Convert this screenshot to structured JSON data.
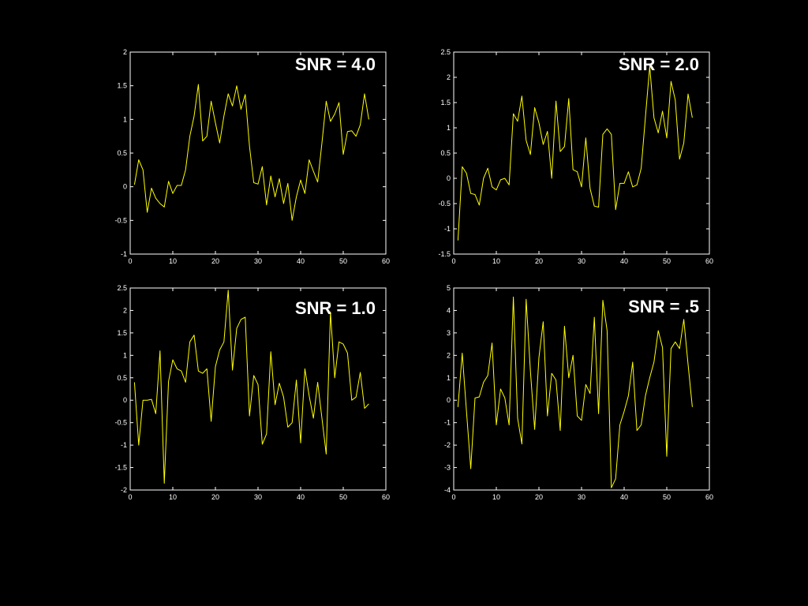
{
  "colors": {
    "background": "#000000",
    "axes": "#ffffff",
    "series": "#ffff00"
  },
  "chart_data": [
    {
      "type": "line",
      "title": "SNR = 4.0",
      "xlim": [
        0,
        60
      ],
      "ylim": [
        -1,
        2
      ],
      "xticks": [
        0,
        10,
        20,
        30,
        40,
        50,
        60
      ],
      "yticks": [
        -1,
        -0.5,
        0,
        0.5,
        1,
        1.5,
        2
      ],
      "grid": false,
      "series": [
        {
          "x": [
            1,
            2,
            3,
            4,
            5,
            6,
            7,
            8,
            9,
            10,
            11,
            12,
            13,
            14,
            15,
            16,
            17,
            18,
            19,
            20,
            21,
            22,
            23,
            24,
            25,
            26,
            27,
            28,
            29,
            30,
            31,
            32,
            33,
            34,
            35,
            36,
            37,
            38,
            39,
            40,
            41,
            42,
            43,
            44,
            45,
            46,
            47,
            48,
            49,
            50,
            51,
            52,
            53,
            54,
            55,
            56
          ],
          "values": [
            0.03,
            0.4,
            0.25,
            -0.38,
            -0.02,
            -0.17,
            -0.25,
            -0.3,
            0.08,
            -0.1,
            0.02,
            0.02,
            0.25,
            0.75,
            1.05,
            1.52,
            0.68,
            0.75,
            1.27,
            0.95,
            0.65,
            1.05,
            1.38,
            1.2,
            1.5,
            1.15,
            1.37,
            0.6,
            0.06,
            0.04,
            0.3,
            -0.27,
            0.16,
            -0.15,
            0.12,
            -0.25,
            0.05,
            -0.5,
            -0.15,
            0.1,
            -0.1,
            0.4,
            0.23,
            0.07,
            0.65,
            1.27,
            0.97,
            1.08,
            1.25,
            0.48,
            0.82,
            0.83,
            0.75,
            0.92,
            1.38,
            1.0
          ]
        }
      ]
    },
    {
      "type": "line",
      "title": "SNR = 2.0",
      "xlim": [
        0,
        60
      ],
      "ylim": [
        -1.5,
        2.5
      ],
      "xticks": [
        0,
        10,
        20,
        30,
        40,
        50,
        60
      ],
      "yticks": [
        -1.5,
        -1,
        -0.5,
        0,
        0.5,
        1,
        1.5,
        2,
        2.5
      ],
      "grid": false,
      "series": [
        {
          "x": [
            1,
            2,
            3,
            4,
            5,
            6,
            7,
            8,
            9,
            10,
            11,
            12,
            13,
            14,
            15,
            16,
            17,
            18,
            19,
            20,
            21,
            22,
            23,
            24,
            25,
            26,
            27,
            28,
            29,
            30,
            31,
            32,
            33,
            34,
            35,
            36,
            37,
            38,
            39,
            40,
            41,
            42,
            43,
            44,
            45,
            46,
            47,
            48,
            49,
            50,
            51,
            52,
            53,
            54,
            55,
            56
          ],
          "values": [
            -1.23,
            0.23,
            0.1,
            -0.3,
            -0.32,
            -0.53,
            0.0,
            0.2,
            -0.17,
            -0.23,
            -0.03,
            0.0,
            -0.13,
            1.28,
            1.13,
            1.63,
            0.75,
            0.47,
            1.4,
            1.1,
            0.67,
            0.93,
            0.0,
            1.53,
            0.53,
            0.63,
            1.58,
            0.17,
            0.13,
            -0.17,
            0.8,
            -0.2,
            -0.55,
            -0.57,
            0.87,
            0.98,
            0.87,
            -0.62,
            -0.1,
            -0.1,
            0.13,
            -0.17,
            -0.13,
            0.2,
            1.22,
            2.22,
            1.2,
            0.9,
            1.33,
            0.8,
            1.92,
            1.55,
            0.38,
            0.7,
            1.67,
            1.2
          ]
        }
      ]
    },
    {
      "type": "line",
      "title": "SNR = 1.0",
      "xlim": [
        0,
        60
      ],
      "ylim": [
        -2,
        2.5
      ],
      "xticks": [
        0,
        10,
        20,
        30,
        40,
        50,
        60
      ],
      "yticks": [
        -2,
        -1.5,
        -1,
        -0.5,
        0,
        0.5,
        1,
        1.5,
        2,
        2.5
      ],
      "grid": false,
      "series": [
        {
          "x": [
            1,
            2,
            3,
            4,
            5,
            6,
            7,
            8,
            9,
            10,
            11,
            12,
            13,
            14,
            15,
            16,
            17,
            18,
            19,
            20,
            21,
            22,
            23,
            24,
            25,
            26,
            27,
            28,
            29,
            30,
            31,
            32,
            33,
            34,
            35,
            36,
            37,
            38,
            39,
            40,
            41,
            42,
            43,
            44,
            45,
            46,
            47,
            48,
            49,
            50,
            51,
            52,
            53,
            54,
            55,
            56
          ],
          "values": [
            0.4,
            -1.0,
            0.0,
            0.0,
            0.02,
            -0.3,
            1.1,
            -1.85,
            0.42,
            0.9,
            0.7,
            0.65,
            0.4,
            1.3,
            1.45,
            0.65,
            0.6,
            0.7,
            -0.47,
            0.75,
            1.12,
            1.3,
            2.45,
            0.67,
            1.6,
            1.8,
            1.85,
            -0.35,
            0.55,
            0.35,
            -0.98,
            -0.75,
            1.08,
            -0.1,
            0.38,
            0.07,
            -0.6,
            -0.5,
            0.45,
            -0.95,
            0.7,
            0.1,
            -0.4,
            0.4,
            -0.4,
            -1.2,
            1.97,
            0.5,
            1.3,
            1.25,
            1.05,
            0.0,
            0.07,
            0.62,
            -0.18,
            -0.08
          ]
        }
      ]
    },
    {
      "type": "line",
      "title": "SNR = .5",
      "xlim": [
        0,
        60
      ],
      "ylim": [
        -4,
        5
      ],
      "xticks": [
        0,
        10,
        20,
        30,
        40,
        50,
        60
      ],
      "yticks": [
        -4,
        -3,
        -2,
        -1,
        0,
        1,
        2,
        3,
        4,
        5
      ],
      "grid": false,
      "series": [
        {
          "x": [
            1,
            2,
            3,
            4,
            5,
            6,
            7,
            8,
            9,
            10,
            11,
            12,
            13,
            14,
            15,
            16,
            17,
            18,
            19,
            20,
            21,
            22,
            23,
            24,
            25,
            26,
            27,
            28,
            29,
            30,
            31,
            32,
            33,
            34,
            35,
            36,
            37,
            38,
            39,
            40,
            41,
            42,
            43,
            44,
            45,
            46,
            47,
            48,
            49,
            50,
            51,
            52,
            53,
            54,
            55,
            56
          ],
          "values": [
            -0.3,
            2.1,
            -0.5,
            -3.05,
            0.1,
            0.15,
            0.8,
            1.1,
            2.55,
            -1.1,
            0.5,
            0.1,
            -1.1,
            4.6,
            -0.8,
            -1.95,
            4.5,
            1.3,
            -1.3,
            1.9,
            3.5,
            -0.7,
            1.2,
            0.9,
            -1.35,
            3.3,
            1.0,
            2.0,
            -0.7,
            -0.9,
            0.7,
            0.3,
            3.7,
            -0.6,
            4.45,
            3.1,
            -3.9,
            -3.5,
            -1.1,
            -0.5,
            0.2,
            1.7,
            -1.35,
            -1.1,
            0.2,
            1.0,
            1.7,
            3.1,
            2.35,
            -2.5,
            2.3,
            2.6,
            2.3,
            3.6,
            1.6,
            -0.3
          ]
        }
      ]
    }
  ]
}
